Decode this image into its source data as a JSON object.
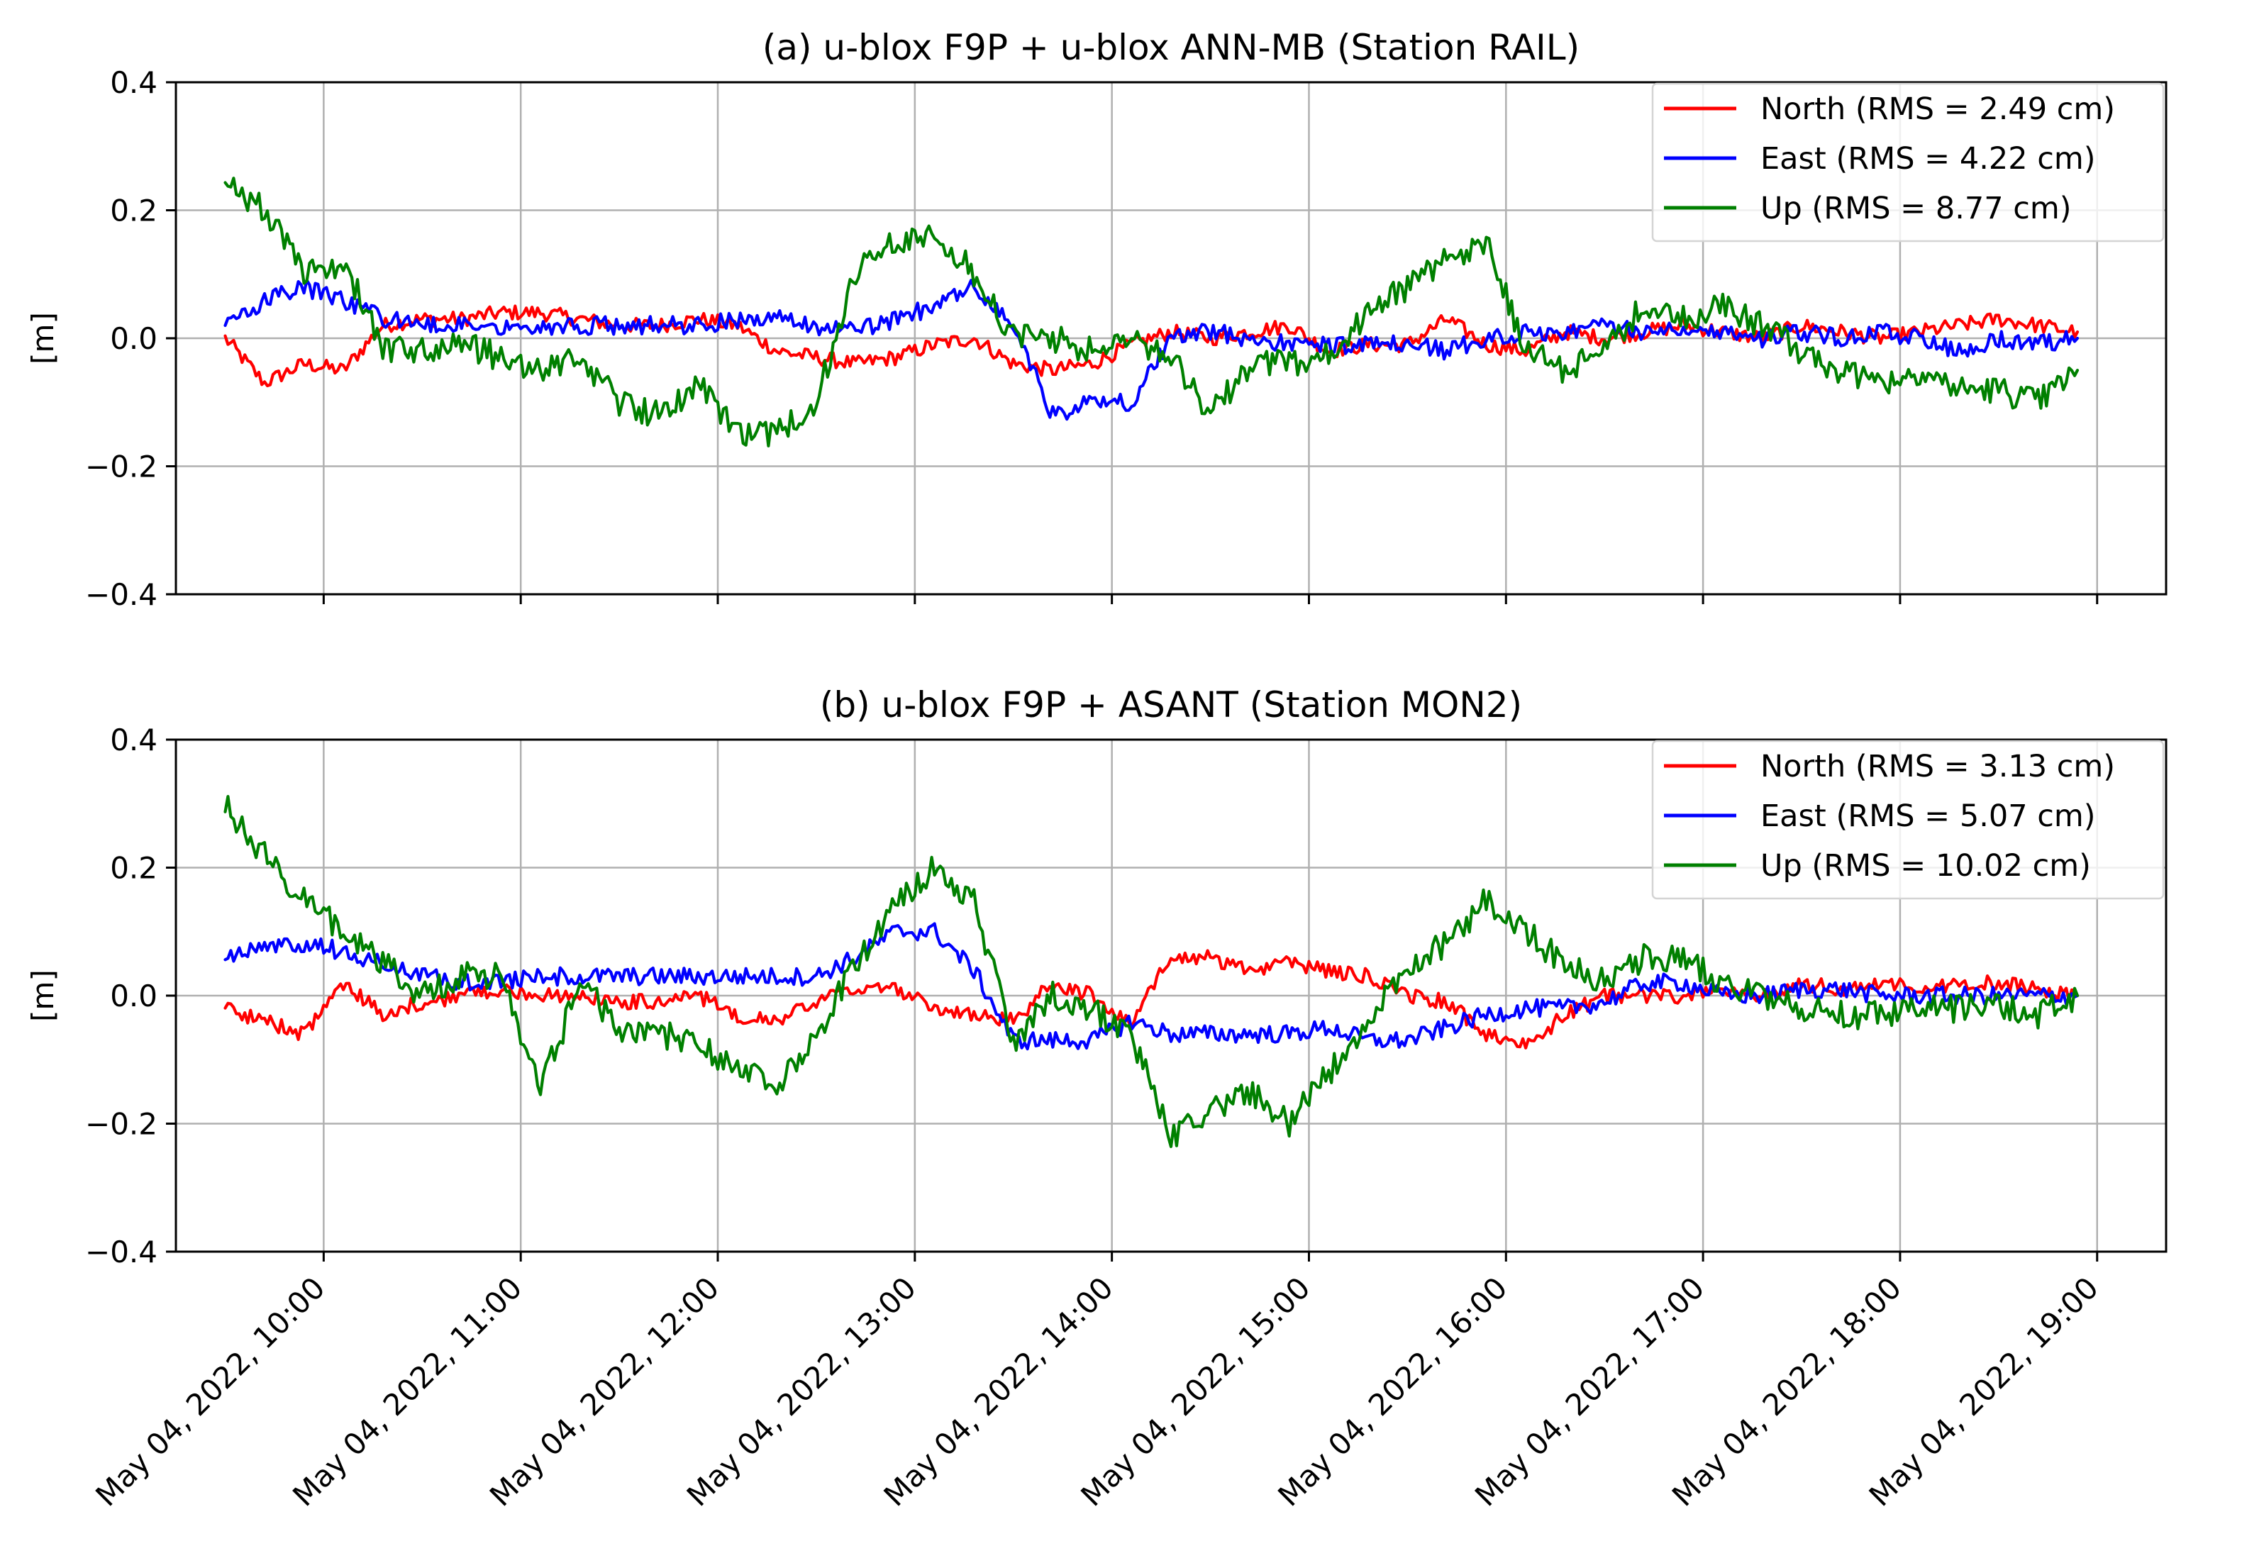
{
  "chart_data": [
    {
      "type": "line",
      "title": "(a) u-blox F9P + u-blox ANN-MB (Station RAIL)",
      "ylabel": "[m]",
      "xlabel": "",
      "ylim": [
        -0.4,
        0.4
      ],
      "yticks": [
        -0.4,
        -0.2,
        0.0,
        0.2,
        0.4
      ],
      "ytick_labels": [
        "−0.4",
        "−0.2",
        "0.0",
        "0.2",
        "0.4"
      ],
      "xlim_hours": [
        9.25,
        19.35
      ],
      "xticks_hours": [
        10,
        11,
        12,
        13,
        14,
        15,
        16,
        17,
        18,
        19
      ],
      "xtick_labels": [],
      "grid": true,
      "legend_position": "top-right",
      "x_hours": [
        9.5,
        9.7,
        9.9,
        10.1,
        10.3,
        10.5,
        10.7,
        10.9,
        11.1,
        11.3,
        11.5,
        11.7,
        11.9,
        12.1,
        12.3,
        12.5,
        12.7,
        12.9,
        13.1,
        13.3,
        13.5,
        13.7,
        13.9,
        14.1,
        14.3,
        14.5,
        14.7,
        14.9,
        15.1,
        15.3,
        15.5,
        15.7,
        15.9,
        16.1,
        16.3,
        16.5,
        16.7,
        16.9,
        17.1,
        17.3,
        17.5,
        17.7,
        17.9,
        18.1,
        18.3,
        18.5,
        18.7,
        18.9
      ],
      "series": [
        {
          "name": "North (RMS = 2.49 cm)",
          "color": "#ff0000",
          "values": [
            0.0,
            -0.07,
            -0.04,
            -0.05,
            0.02,
            0.03,
            0.03,
            0.04,
            0.04,
            0.03,
            0.02,
            0.02,
            0.03,
            0.02,
            -0.02,
            -0.03,
            -0.04,
            -0.03,
            -0.01,
            0.0,
            -0.04,
            -0.05,
            -0.04,
            -0.01,
            0.01,
            0.0,
            0.01,
            0.02,
            -0.02,
            -0.01,
            -0.01,
            0.03,
            -0.01,
            -0.02,
            0.01,
            0.0,
            0.01,
            0.02,
            0.01,
            0.0,
            0.02,
            0.01,
            0.0,
            0.01,
            0.02,
            0.03,
            0.02,
            0.01
          ]
        },
        {
          "name": "East (RMS = 4.22 cm)",
          "color": "#0000ff",
          "values": [
            0.02,
            0.06,
            0.08,
            0.06,
            0.03,
            0.02,
            0.02,
            0.02,
            0.02,
            0.02,
            0.02,
            0.02,
            0.02,
            0.03,
            0.03,
            0.02,
            0.01,
            0.03,
            0.05,
            0.08,
            0.02,
            -0.12,
            -0.1,
            -0.1,
            0.0,
            0.01,
            0.0,
            -0.01,
            -0.01,
            -0.01,
            -0.01,
            -0.02,
            0.0,
            0.01,
            0.01,
            0.02,
            0.01,
            0.02,
            0.01,
            0.0,
            0.01,
            0.0,
            0.01,
            0.0,
            -0.02,
            0.0,
            -0.01,
            0.0
          ]
        },
        {
          "name": "Up (RMS = 8.77 cm)",
          "color": "#008000",
          "values": [
            0.25,
            0.2,
            0.1,
            0.12,
            -0.02,
            -0.02,
            -0.01,
            -0.03,
            -0.05,
            -0.03,
            -0.1,
            -0.12,
            -0.07,
            -0.15,
            -0.15,
            -0.1,
            0.1,
            0.15,
            0.17,
            0.1,
            0.0,
            0.0,
            -0.02,
            0.0,
            -0.03,
            -0.12,
            -0.04,
            -0.04,
            -0.03,
            0.04,
            0.08,
            0.12,
            0.15,
            -0.02,
            -0.05,
            -0.02,
            0.05,
            0.03,
            0.05,
            0.02,
            -0.02,
            -0.05,
            -0.07,
            -0.05,
            -0.08,
            -0.08,
            -0.1,
            -0.05
          ]
        }
      ]
    },
    {
      "type": "line",
      "title": "(b) u-blox F9P + ASANT (Station MON2)",
      "ylabel": "[m]",
      "xlabel": "",
      "ylim": [
        -0.4,
        0.4
      ],
      "yticks": [
        -0.4,
        -0.2,
        0.0,
        0.2,
        0.4
      ],
      "ytick_labels": [
        "−0.4",
        "−0.2",
        "0.0",
        "0.2",
        "0.4"
      ],
      "xlim_hours": [
        9.25,
        19.35
      ],
      "xticks_hours": [
        10,
        11,
        12,
        13,
        14,
        15,
        16,
        17,
        18,
        19
      ],
      "xtick_labels": [
        "May 04, 2022, 10:00",
        "May 04, 2022, 11:00",
        "May 04, 2022, 12:00",
        "May 04, 2022, 13:00",
        "May 04, 2022, 14:00",
        "May 04, 2022, 15:00",
        "May 04, 2022, 16:00",
        "May 04, 2022, 17:00",
        "May 04, 2022, 18:00",
        "May 04, 2022, 19:00"
      ],
      "grid": true,
      "legend_position": "top-right",
      "x_hours": [
        9.5,
        9.7,
        9.9,
        10.1,
        10.3,
        10.5,
        10.7,
        10.9,
        11.1,
        11.3,
        11.5,
        11.7,
        11.9,
        12.1,
        12.3,
        12.5,
        12.7,
        12.9,
        13.1,
        13.3,
        13.5,
        13.7,
        13.9,
        14.1,
        14.3,
        14.5,
        14.7,
        14.9,
        15.1,
        15.3,
        15.5,
        15.7,
        15.9,
        16.1,
        16.3,
        16.5,
        16.7,
        16.9,
        17.1,
        17.3,
        17.5,
        17.7,
        17.9,
        18.1,
        18.3,
        18.5,
        18.7,
        18.9
      ],
      "series": [
        {
          "name": "North (RMS = 3.13 cm)",
          "color": "#ff0000",
          "values": [
            -0.02,
            -0.04,
            -0.06,
            0.02,
            -0.03,
            -0.01,
            0.0,
            0.01,
            0.0,
            0.0,
            -0.01,
            -0.01,
            0.0,
            -0.03,
            -0.04,
            -0.01,
            0.01,
            0.01,
            -0.02,
            -0.03,
            -0.04,
            0.02,
            0.0,
            -0.04,
            0.06,
            0.06,
            0.04,
            0.05,
            0.04,
            0.03,
            0.0,
            -0.01,
            -0.06,
            -0.08,
            -0.03,
            0.0,
            0.0,
            0.0,
            0.01,
            0.0,
            0.02,
            0.01,
            0.02,
            0.01,
            0.02,
            0.02,
            0.01,
            0.0
          ]
        },
        {
          "name": "East (RMS = 5.07 cm)",
          "color": "#0000ff",
          "values": [
            0.06,
            0.08,
            0.08,
            0.07,
            0.05,
            0.03,
            0.02,
            0.02,
            0.03,
            0.03,
            0.03,
            0.03,
            0.03,
            0.03,
            0.03,
            0.03,
            0.06,
            0.1,
            0.1,
            0.04,
            -0.07,
            -0.07,
            -0.07,
            -0.04,
            -0.06,
            -0.06,
            -0.06,
            -0.06,
            -0.05,
            -0.07,
            -0.07,
            -0.05,
            -0.03,
            -0.02,
            -0.02,
            -0.01,
            0.02,
            0.02,
            0.0,
            0.0,
            0.01,
            0.01,
            0.0,
            0.0,
            0.0,
            0.0,
            0.0,
            0.0
          ]
        },
        {
          "name": "Up (RMS = 10.02 cm)",
          "color": "#008000",
          "values": [
            0.3,
            0.22,
            0.15,
            0.1,
            0.05,
            0.0,
            0.03,
            0.03,
            -0.15,
            0.02,
            -0.05,
            -0.06,
            -0.07,
            -0.12,
            -0.14,
            -0.06,
            0.05,
            0.14,
            0.2,
            0.15,
            -0.08,
            0.0,
            -0.02,
            -0.06,
            -0.22,
            -0.18,
            -0.15,
            -0.2,
            -0.12,
            -0.04,
            0.05,
            0.08,
            0.15,
            0.1,
            0.05,
            0.02,
            0.06,
            0.06,
            0.02,
            0.0,
            -0.02,
            -0.03,
            -0.03,
            -0.02,
            -0.02,
            -0.02,
            -0.03,
            0.0
          ]
        }
      ]
    }
  ]
}
